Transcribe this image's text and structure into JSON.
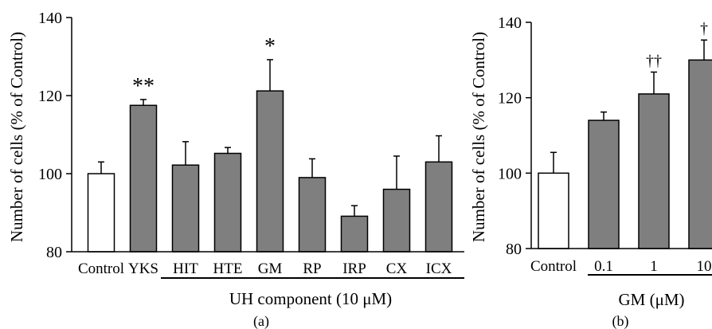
{
  "colors": {
    "control_bar": "#ffffff",
    "treatment_bar": "#7f7f7f",
    "stroke": "#000000"
  },
  "chart_data": [
    {
      "type": "bar",
      "panel_label": "(a)",
      "ylabel": "Number of cells (% of Control)",
      "ylim": [
        80,
        140
      ],
      "yticks": [
        "80",
        "100",
        "120",
        "140"
      ],
      "categories": [
        "Control",
        "YKS",
        "HIT",
        "HTE",
        "GM",
        "RP",
        "IRP",
        "CX",
        "ICX"
      ],
      "values": [
        100,
        117.5,
        102.2,
        105.2,
        121.2,
        99.0,
        89.1,
        96.0,
        103.0
      ],
      "errors": [
        3.0,
        1.5,
        6.0,
        1.5,
        8.0,
        4.8,
        2.7,
        8.5,
        6.7
      ],
      "fills": [
        "control",
        "treatment",
        "treatment",
        "treatment",
        "treatment",
        "treatment",
        "treatment",
        "treatment",
        "treatment"
      ],
      "annotations": [
        "",
        "**",
        "",
        "",
        "*",
        "",
        "",
        "",
        ""
      ],
      "group_label": "UH component (10 μM)",
      "grid": false
    },
    {
      "type": "bar",
      "panel_label": "(b)",
      "ylabel": "Number of cells (% of Control)",
      "ylim": [
        80,
        140
      ],
      "yticks": [
        "80",
        "100",
        "120",
        "140"
      ],
      "categories": [
        "Control",
        "0.1",
        "1",
        "10"
      ],
      "values": [
        100,
        114,
        121,
        130
      ],
      "errors": [
        5.5,
        2.2,
        5.8,
        5.3
      ],
      "fills": [
        "control",
        "treatment",
        "treatment",
        "treatment"
      ],
      "annotations": [
        "",
        "",
        "††",
        "†"
      ],
      "group_label": "GM (μM)",
      "grid": false
    }
  ]
}
